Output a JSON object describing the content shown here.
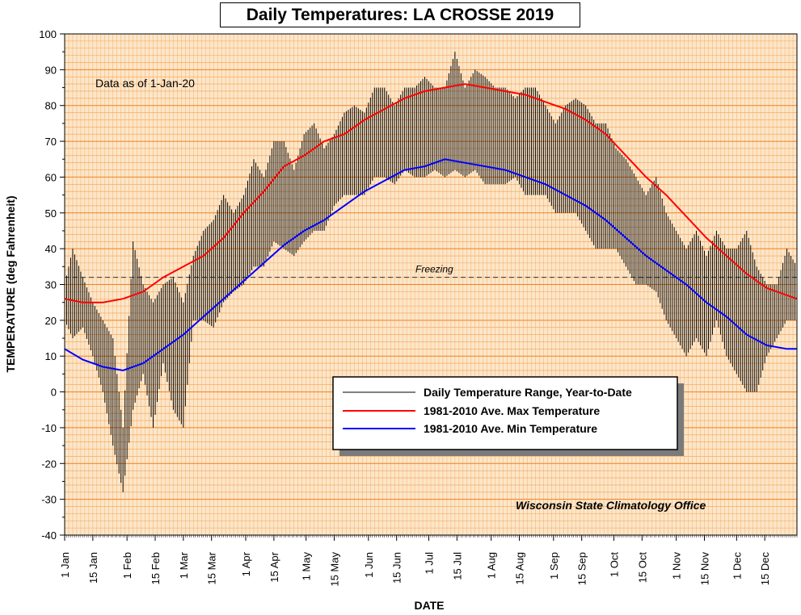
{
  "chart_data": {
    "type": "line",
    "title": "Daily Temperatures: LA CROSSE 2019",
    "xlabel": "DATE",
    "ylabel": "TEMPERATURE (deg Fahrenheit)",
    "ylim": [
      -40,
      100
    ],
    "xlim_days": [
      1,
      365
    ],
    "y_ticks": [
      -40,
      -30,
      -20,
      -10,
      0,
      10,
      20,
      30,
      40,
      50,
      60,
      70,
      80,
      90,
      100
    ],
    "x_ticks": [
      {
        "day": 1,
        "label": "1 Jan"
      },
      {
        "day": 15,
        "label": "15 Jan"
      },
      {
        "day": 32,
        "label": "1 Feb"
      },
      {
        "day": 46,
        "label": "15 Feb"
      },
      {
        "day": 60,
        "label": "1 Mar"
      },
      {
        "day": 74,
        "label": "15 Mar"
      },
      {
        "day": 91,
        "label": "1 Apr"
      },
      {
        "day": 105,
        "label": "15 Apr"
      },
      {
        "day": 121,
        "label": "1 May"
      },
      {
        "day": 135,
        "label": "15 May"
      },
      {
        "day": 152,
        "label": "1 Jun"
      },
      {
        "day": 166,
        "label": "15 Jun"
      },
      {
        "day": 182,
        "label": "1 Jul"
      },
      {
        "day": 196,
        "label": "15 Jul"
      },
      {
        "day": 213,
        "label": "1 Aug"
      },
      {
        "day": 227,
        "label": "15 Aug"
      },
      {
        "day": 244,
        "label": "1 Sep"
      },
      {
        "day": 258,
        "label": "15 Sep"
      },
      {
        "day": 274,
        "label": "1 Oct"
      },
      {
        "day": 288,
        "label": "15 Oct"
      },
      {
        "day": 305,
        "label": "1 Nov"
      },
      {
        "day": 319,
        "label": "15 Nov"
      },
      {
        "day": 335,
        "label": "1 Dec"
      },
      {
        "day": 349,
        "label": "15 Dec"
      }
    ],
    "grid": true,
    "legend_position": "lower-right",
    "annotations": {
      "as_of": "Data as of 1-Jan-20",
      "freezing_label": "Freezing",
      "freezing_value": 32,
      "credit": "Wisconsin State Climatology Office"
    },
    "series": [
      {
        "name": "Daily Temperature Range, Year-to-Date",
        "type": "range",
        "color": "#000000",
        "days": [
          1,
          5,
          10,
          15,
          20,
          25,
          30,
          35,
          40,
          45,
          50,
          55,
          60,
          65,
          70,
          75,
          80,
          85,
          90,
          95,
          100,
          105,
          110,
          115,
          120,
          125,
          130,
          135,
          140,
          145,
          150,
          155,
          160,
          165,
          170,
          175,
          180,
          185,
          190,
          195,
          200,
          205,
          210,
          215,
          220,
          225,
          230,
          235,
          240,
          245,
          250,
          255,
          260,
          265,
          270,
          275,
          280,
          285,
          290,
          295,
          300,
          305,
          310,
          315,
          320,
          325,
          330,
          335,
          340,
          345,
          350,
          355,
          360,
          365
        ],
        "high": [
          30,
          40,
          32,
          25,
          20,
          15,
          -10,
          42,
          30,
          25,
          30,
          32,
          25,
          38,
          45,
          48,
          55,
          50,
          55,
          65,
          60,
          70,
          70,
          62,
          72,
          75,
          68,
          72,
          78,
          80,
          78,
          85,
          85,
          80,
          85,
          85,
          88,
          85,
          85,
          95,
          85,
          90,
          88,
          85,
          85,
          82,
          85,
          85,
          80,
          75,
          80,
          82,
          80,
          75,
          75,
          68,
          65,
          60,
          55,
          60,
          50,
          45,
          40,
          45,
          38,
          45,
          40,
          40,
          45,
          35,
          30,
          30,
          40,
          35
        ],
        "low": [
          20,
          15,
          18,
          10,
          0,
          -15,
          -28,
          -5,
          5,
          -10,
          8,
          -5,
          -10,
          20,
          20,
          18,
          25,
          28,
          30,
          35,
          35,
          42,
          40,
          38,
          42,
          45,
          45,
          52,
          55,
          55,
          55,
          60,
          60,
          58,
          62,
          60,
          60,
          62,
          60,
          62,
          60,
          62,
          58,
          58,
          58,
          60,
          55,
          55,
          55,
          50,
          50,
          50,
          45,
          40,
          40,
          40,
          35,
          30,
          30,
          28,
          20,
          15,
          10,
          15,
          10,
          20,
          10,
          5,
          0,
          0,
          10,
          15,
          20,
          20
        ]
      },
      {
        "name": "1981-2010 Ave. Max Temperature",
        "type": "line",
        "color": "#ff0000",
        "days": [
          1,
          10,
          20,
          30,
          40,
          50,
          60,
          70,
          80,
          90,
          100,
          110,
          120,
          130,
          140,
          150,
          160,
          170,
          180,
          190,
          200,
          210,
          220,
          230,
          240,
          250,
          260,
          270,
          280,
          290,
          300,
          310,
          320,
          330,
          340,
          350,
          360,
          365
        ],
        "values": [
          26,
          25,
          25,
          26,
          28,
          32,
          35,
          38,
          43,
          50,
          56,
          63,
          66,
          70,
          72,
          76,
          79,
          82,
          84,
          85,
          86,
          85,
          84,
          83,
          81,
          79,
          76,
          72,
          66,
          60,
          55,
          49,
          43,
          38,
          33,
          29,
          27,
          26
        ]
      },
      {
        "name": "1981-2010 Ave. Min Temperature",
        "type": "line",
        "color": "#0000ff",
        "days": [
          1,
          10,
          20,
          30,
          40,
          50,
          60,
          70,
          80,
          90,
          100,
          110,
          120,
          130,
          140,
          150,
          160,
          170,
          180,
          190,
          200,
          210,
          220,
          230,
          240,
          250,
          260,
          270,
          280,
          290,
          300,
          310,
          320,
          330,
          340,
          350,
          360,
          365
        ],
        "values": [
          12,
          9,
          7,
          6,
          8,
          12,
          16,
          21,
          26,
          31,
          36,
          41,
          45,
          48,
          52,
          56,
          59,
          62,
          63,
          65,
          64,
          63,
          62,
          60,
          58,
          55,
          52,
          48,
          43,
          38,
          34,
          30,
          25,
          21,
          16,
          13,
          12,
          12
        ]
      }
    ]
  }
}
